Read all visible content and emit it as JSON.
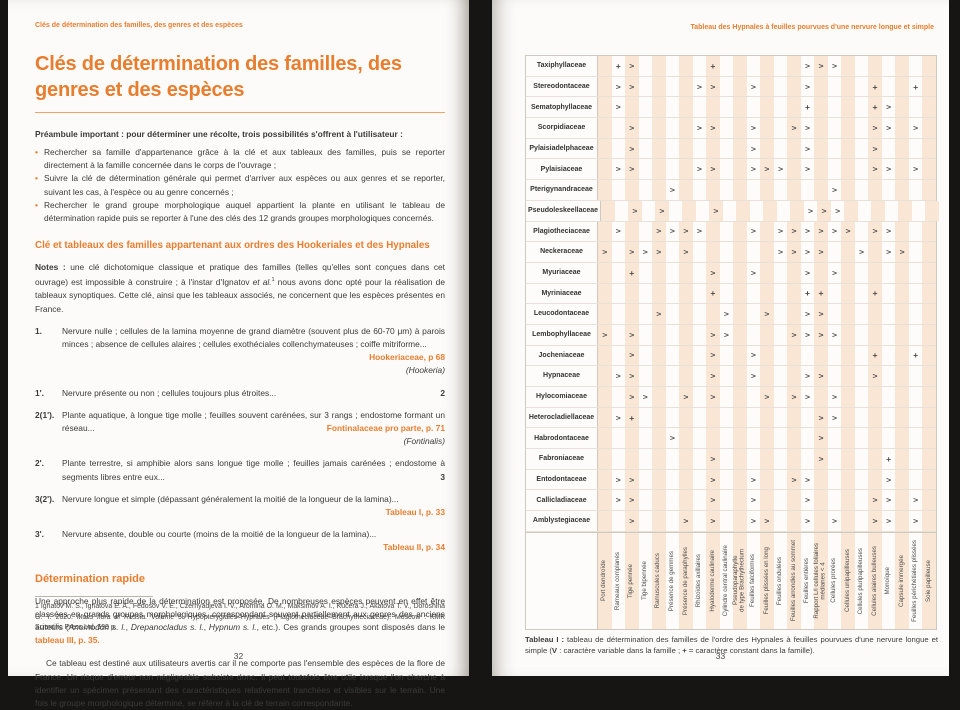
{
  "left_page": {
    "running_header": "Clés de détermination des familles, des genres et des espèces",
    "title": "Clés de détermination des familles, des genres et des espèces",
    "preamble": "Préambule important : pour déterminer une récolte, trois possibilités s'offrent à l'utilisateur :",
    "bullet_glyph": "•",
    "bullets": [
      "Rechercher sa famille d'appartenance grâce à la clé et aux tableaux des familles, puis se reporter directement à la famille concernée dans le corps de l'ouvrage ;",
      "Suivre la clé de détermination générale qui permet d'arriver aux espèces ou aux genres et se reporter, suivant les cas, à l'espèce ou au genre concernés ;",
      "Rechercher le grand groupe morphologique auquel appartient la plante en utilisant le tableau de détermination rapide puis se reporter à l'une des clés des 12 grands groupes morphologiques concernés."
    ],
    "section1_heading": "Clé et tableaux des familles appartenant aux ordres des Hookeriales et des Hypnales",
    "notes_segments": [
      {
        "t": "Notes :",
        "c": "b"
      },
      {
        "t": " une clé dichotomique classique et pratique des familles (telles qu'elles sont conçues dans cet ouvrage) est impossible à construire ; à l'instar d'Ignatov "
      },
      {
        "t": "et al.",
        "c": "i"
      },
      {
        "t": "1",
        "c": "sup"
      },
      {
        "t": " nous avons donc opté pour la réalisation de tableaux synoptiques. Cette clé, ainsi que les tableaux associés, ne concernent que les espèces présentes en France."
      }
    ],
    "key_items": [
      {
        "num": "1.",
        "text": "Nervure nulle ; cellules de la lamina moyenne de grand diamètre (souvent plus de 60-70 μm) à parois minces ; absence de cellules alaires ; cellules exothéciales collenchymateuses ; coiffe mitriforme...",
        "refs": [
          {
            "t": "Hookeriaceae, p 68",
            "c": "o"
          },
          {
            "t": "(Hookeria)",
            "c": "i"
          }
        ]
      },
      {
        "num": "1'.",
        "text": "Nervure présente ou non ; cellules toujours plus étroites...",
        "refs": [
          {
            "t": "2",
            "c": "b"
          }
        ]
      },
      {
        "num": "2(1').",
        "text": "Plante aquatique, à longue tige molle ; feuilles souvent carénées, sur 3 rangs ; endostome formant un réseau...",
        "refs": [
          {
            "t": "Fontinalaceae pro parte, p. 71",
            "c": "o"
          },
          {
            "t": "(Fontinalis)",
            "c": "i"
          }
        ]
      },
      {
        "num": "2'.",
        "text": "Plante terrestre, si amphibie alors sans longue tige molle ; feuilles jamais carénées ; endostome à segments libres entre eux...",
        "refs": [
          {
            "t": "3",
            "c": "b"
          }
        ]
      },
      {
        "num": "3(2').",
        "text": "Nervure longue et simple (dépassant généralement la moitié de la longueur de la lamina)...",
        "refs": [
          {
            "t": "Tableau I, p. 33",
            "c": "o"
          }
        ]
      },
      {
        "num": "3'.",
        "text": "Nervure absente, double ou courte (moins de la moitié de la longueur de la lamina)...",
        "refs": [
          {
            "t": "Tableau II, p. 34",
            "c": "o"
          }
        ]
      }
    ],
    "section2_heading": "Détermination rapide",
    "para1_segments": [
      {
        "t": "Une approche plus rapide de la détermination est proposée. De nombreuses espèces peuvent en effet être classées en grands groupes morphologiques, correspondant souvent partiellement aux genres des anciens auteurs ("
      },
      {
        "t": "Anomodon s. l.",
        "c": "i"
      },
      {
        "t": ", "
      },
      {
        "t": "Drepanocladus s. l.",
        "c": "i"
      },
      {
        "t": ", "
      },
      {
        "t": "Hypnum s. l.",
        "c": "i"
      },
      {
        "t": ", etc.). Ces grands groupes sont disposés dans le "
      },
      {
        "t": "tableau III, p. 35.",
        "c": "o"
      }
    ],
    "para2": "Ce tableau est destiné aux utilisateurs avertis car il ne comporte pas l'ensemble des espèces de la flore de France. Un risque d'erreur non négligeable subsiste donc. Il peut toutefois être utile lorsque l'on cherche à identifier un spécimen présentant des caractéristiques relativement tranchées et visibles sur le terrain. Une fois le groupe morphologique déterminé, se référer à la clé de terrain correspondante.",
    "footnote_segments": [
      {
        "t": "1 Ignatov M. S., Ignatova E. A., Fedosov V. E., Czernyadjeva I. V., Afomina O. M., Maksimov A. I., Kučera J., Akatova T. V., Doroshina G. Y. 2020. "
      },
      {
        "t": "Moss flora of Russia.",
        "c": "i"
      },
      {
        "t": " Volume 5. Hypopterygiales–Hypnales (Plagiotheciaceae–Brachytheciaceae). Moscow : KMK Scientific Press Ltd. 599 p."
      }
    ],
    "page_number": "32"
  },
  "right_page": {
    "running_header": "Tableau des Hypnales à feuilles pourvues d'une nervure longue et simple",
    "page_number": "33",
    "table": {
      "legend": {
        "variable_symbol": ">",
        "constant_symbol": "+"
      },
      "columns": [
        "Port dendroïde",
        "Rameaux complanés",
        "Tige pennée",
        "Tige bipennée",
        "Ramuscules caducs",
        "Présence de gemmes",
        "Présence de paraphylles",
        "Rhizoïdes axillaires",
        "Hyaloderme caulinaire",
        "Cylindre central caulinaire",
        "Pseudoparaphylle\nde type Brachythecium",
        "Feuilles falciformes",
        "Feuilles plissées en long",
        "Feuilles ondulées",
        "Feuilles arrondies au sommet",
        "Feuilles entières",
        "Rapport L/l cellules foliaires\nmédianes < 4",
        "Cellules prorées",
        "Cellules unipapilleuses",
        "Cellules pluripapilleuses",
        "Cellules alaires bulleuses",
        "Monoïque",
        "Capsule immergée",
        "Feuilles périchétiales plissées",
        "Soie papilleuse"
      ],
      "families": [
        {
          "name": "Taxiphyllaceae",
          "cells": {
            "2": "+",
            "3": ">",
            "9": "+",
            "16": ">",
            "17": ">",
            "18": ">"
          }
        },
        {
          "name": "Stereodontaceae",
          "cells": {
            "2": ">",
            "3": ">",
            "8": ">",
            "9": ">",
            "12": ">",
            "16": ">",
            "21": "+",
            "24": "+"
          }
        },
        {
          "name": "Sematophyllaceae",
          "cells": {
            "2": ">",
            "16": "+",
            "21": "+",
            "22": ">"
          }
        },
        {
          "name": "Scorpidiaceae",
          "cells": {
            "3": ">",
            "8": ">",
            "9": ">",
            "12": ">",
            "15": ">",
            "16": ">",
            "21": ">",
            "22": ">",
            "24": ">"
          }
        },
        {
          "name": "Pylaisiadelphaceae",
          "cells": {
            "3": ">",
            "12": ">",
            "16": ">",
            "21": ">"
          }
        },
        {
          "name": "Pylaisiaceae",
          "cells": {
            "2": ">",
            "3": ">",
            "8": ">",
            "9": ">",
            "12": ">",
            "13": ">",
            "14": ">",
            "16": ">",
            "21": ">",
            "22": ">",
            "24": ">"
          }
        },
        {
          "name": "Pterigynandraceae",
          "cells": {
            "6": ">",
            "18": ">"
          }
        },
        {
          "name": "Pseudoleskeellaceae",
          "cells": {
            "3": ">",
            "5": ">",
            "9": ">",
            "16": ">",
            "17": ">",
            "18": ">"
          }
        },
        {
          "name": "Plagiotheciaceae",
          "cells": {
            "2": ">",
            "5": ">",
            "6": ">",
            "7": ">",
            "8": ">",
            "12": ">",
            "14": ">",
            "15": ">",
            "16": ">",
            "17": ">",
            "18": ">",
            "19": ">",
            "21": ">",
            "22": ">"
          }
        },
        {
          "name": "Neckeraceae",
          "cells": {
            "1": ">",
            "3": ">",
            "4": ">",
            "5": ">",
            "7": ">",
            "14": ">",
            "15": ">",
            "16": ">",
            "17": ">",
            "20": ">",
            "22": ">",
            "23": ">"
          }
        },
        {
          "name": "Myuriaceae",
          "cells": {
            "3": "+",
            "9": ">",
            "12": ">",
            "16": ">",
            "18": ">"
          }
        },
        {
          "name": "Myriniaceae",
          "cells": {
            "9": "+",
            "16": "+",
            "17": "+",
            "21": "+"
          }
        },
        {
          "name": "Leucodontaceae",
          "cells": {
            "5": ">",
            "10": ">",
            "13": ">",
            "16": ">",
            "17": ">"
          }
        },
        {
          "name": "Lembophyllaceae",
          "cells": {
            "1": ">",
            "3": ">",
            "9": ">",
            "10": ">",
            "15": ">",
            "16": ">",
            "17": ">",
            "18": ">"
          }
        },
        {
          "name": "Jocheniaceae",
          "cells": {
            "3": ">",
            "9": ">",
            "12": ">",
            "21": "+",
            "24": "+"
          }
        },
        {
          "name": "Hypnaceae",
          "cells": {
            "2": ">",
            "3": ">",
            "9": ">",
            "12": ">",
            "16": ">",
            "17": ">",
            "21": ">"
          }
        },
        {
          "name": "Hylocomiaceae",
          "cells": {
            "3": ">",
            "4": ">",
            "7": ">",
            "9": ">",
            "13": ">",
            "15": ">",
            "16": ">",
            "18": ">"
          }
        },
        {
          "name": "Heterocladiellaceae",
          "cells": {
            "2": ">",
            "3": "+",
            "17": ">",
            "18": ">"
          }
        },
        {
          "name": "Habrodontaceae",
          "cells": {
            "6": ">",
            "17": ">"
          }
        },
        {
          "name": "Fabroniaceae",
          "cells": {
            "9": ">",
            "17": ">",
            "22": "+"
          }
        },
        {
          "name": "Entodontaceae",
          "cells": {
            "2": ">",
            "3": ">",
            "9": ">",
            "12": ">",
            "15": ">",
            "16": ">",
            "22": ">"
          }
        },
        {
          "name": "Callicladiaceae",
          "cells": {
            "2": ">",
            "3": ">",
            "9": ">",
            "12": ">",
            "16": ">",
            "21": ">",
            "22": ">",
            "24": ">"
          }
        },
        {
          "name": "Amblystegiaceae",
          "cells": {
            "3": ">",
            "7": ">",
            "9": ">",
            "12": ">",
            "13": ">",
            "16": ">",
            "18": ">",
            "21": ">",
            "22": ">",
            "24": ">"
          }
        }
      ],
      "caption_segments": [
        {
          "t": "Tableau I : ",
          "c": "b"
        },
        {
          "t": "tableau de détermination des familles de l'ordre des Hypnales à feuilles pourvues d'une nervure longue et simple ("
        },
        {
          "t": "V",
          "c": "b"
        },
        {
          "t": " : caractère variable dans la famille ; "
        },
        {
          "t": "+",
          "c": "b"
        },
        {
          "t": " = caractère constant dans la famille)."
        }
      ]
    }
  }
}
